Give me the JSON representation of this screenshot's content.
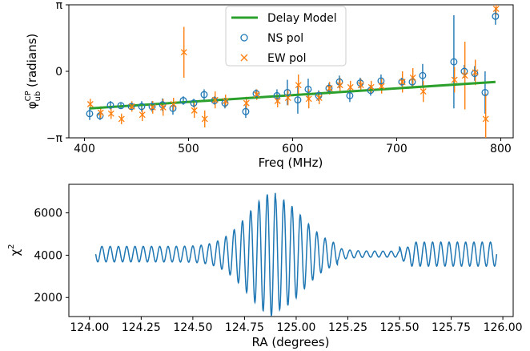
{
  "chart_data": [
    {
      "type": "scatter",
      "xlabel": "Freq (MHz)",
      "ylabel_main": "φ",
      "ylabel_sup": "CP",
      "ylabel_sub": "ub",
      "ylabel_rest": " (radians)",
      "xlim": [
        385,
        812
      ],
      "ylim": [
        -3.1416,
        3.1416
      ],
      "x_ticks": [
        400,
        500,
        600,
        700,
        800
      ],
      "x_tick_labels": [
        "400",
        "500",
        "600",
        "700",
        "800"
      ],
      "y_ticks": [
        -3.1416,
        0,
        3.1416
      ],
      "y_tick_labels": [
        "−π",
        "0",
        "π"
      ],
      "legend": {
        "placement": "top-center",
        "entries": [
          "Delay Model",
          "NS pol",
          "EW pol"
        ]
      },
      "model_line": {
        "name": "Delay Model",
        "color": "#2ca02c",
        "x": [
          405,
          795
        ],
        "y": [
          -1.75,
          -0.5
        ]
      },
      "series": [
        {
          "name": "NS pol",
          "color": "#1f77b4",
          "marker": "circle",
          "x": [
            405,
            415,
            425,
            435,
            445,
            455,
            465,
            475,
            485,
            495,
            505,
            515,
            525,
            535,
            555,
            565,
            585,
            595,
            605,
            615,
            625,
            635,
            645,
            655,
            665,
            675,
            685,
            705,
            715,
            725,
            755,
            765,
            775,
            785,
            795
          ],
          "y": [
            -2.0,
            -2.1,
            -1.6,
            -1.62,
            -1.66,
            -1.66,
            -1.66,
            -1.58,
            -1.75,
            -1.38,
            -1.5,
            -1.1,
            -1.38,
            -1.5,
            -1.9,
            -1.05,
            -1.15,
            -1.0,
            -1.35,
            -0.85,
            -1.15,
            -0.8,
            -0.5,
            -1.15,
            -0.55,
            -0.9,
            -0.45,
            -0.5,
            -0.5,
            -0.2,
            0.45,
            0.0,
            -0.1,
            -1.0,
            2.6
          ],
          "err": [
            0.3,
            0.2,
            0.2,
            0.15,
            0.15,
            0.25,
            0.25,
            0.3,
            0.3,
            0.2,
            0.2,
            0.25,
            0.2,
            0.25,
            0.3,
            0.2,
            0.3,
            0.6,
            0.65,
            0.5,
            0.25,
            0.25,
            0.3,
            0.3,
            0.25,
            0.25,
            0.3,
            0.2,
            0.25,
            0.55,
            2.2,
            0.3,
            0.35,
            1.0,
            0.4
          ]
        },
        {
          "name": "EW pol",
          "color": "#ff7f0e",
          "marker": "x",
          "x": [
            405,
            415,
            425,
            435,
            445,
            455,
            465,
            475,
            485,
            495,
            505,
            515,
            525,
            535,
            555,
            565,
            585,
            595,
            605,
            615,
            625,
            635,
            645,
            655,
            665,
            675,
            685,
            705,
            715,
            725,
            755,
            765,
            775,
            785,
            795
          ],
          "y": [
            -1.55,
            -1.95,
            -2.0,
            -2.25,
            -1.66,
            -2.05,
            -1.7,
            -1.7,
            -1.55,
            0.9,
            -1.85,
            -2.25,
            -1.35,
            -1.4,
            -1.5,
            -1.1,
            -1.4,
            -1.25,
            -0.65,
            -1.3,
            -1.25,
            -0.8,
            -0.65,
            -0.75,
            -0.65,
            -0.75,
            -0.7,
            -0.5,
            -0.3,
            -0.95,
            -0.4,
            -0.2,
            -0.05,
            -2.25,
            2.95
          ],
          "err": [
            0.25,
            0.3,
            0.25,
            0.25,
            0.25,
            0.3,
            0.3,
            0.4,
            0.3,
            1.2,
            0.35,
            0.4,
            0.4,
            0.3,
            0.3,
            0.25,
            0.3,
            0.35,
            0.5,
            0.45,
            0.3,
            0.3,
            0.35,
            0.3,
            0.3,
            0.3,
            0.35,
            0.5,
            0.45,
            0.5,
            0.6,
            1.6,
            0.6,
            1.2,
            0.3
          ]
        }
      ]
    },
    {
      "type": "line",
      "xlabel": "RA (degrees)",
      "ylabel_main": "χ",
      "ylabel_sup": "2",
      "xlim": [
        123.9,
        126.05
      ],
      "ylim": [
        1100,
        7350
      ],
      "x_ticks": [
        124.0,
        124.25,
        124.5,
        124.75,
        125.0,
        125.25,
        125.5,
        125.75,
        126.0
      ],
      "x_tick_labels": [
        "124.00",
        "124.25",
        "124.50",
        "124.75",
        "125.00",
        "125.25",
        "125.50",
        "125.75",
        "126.00"
      ],
      "y_ticks": [
        2000,
        4000,
        6000
      ],
      "y_tick_labels": [
        "2000",
        "4000",
        "6000"
      ],
      "series": [
        {
          "name": "",
          "color": "#1f77b4",
          "x_start": 124.03,
          "x_end": 125.97,
          "baseline": 4050,
          "peak_center": 124.9,
          "oscillation_period": 0.04,
          "peak_max": 7000,
          "peak_min": 1500
        }
      ]
    }
  ]
}
